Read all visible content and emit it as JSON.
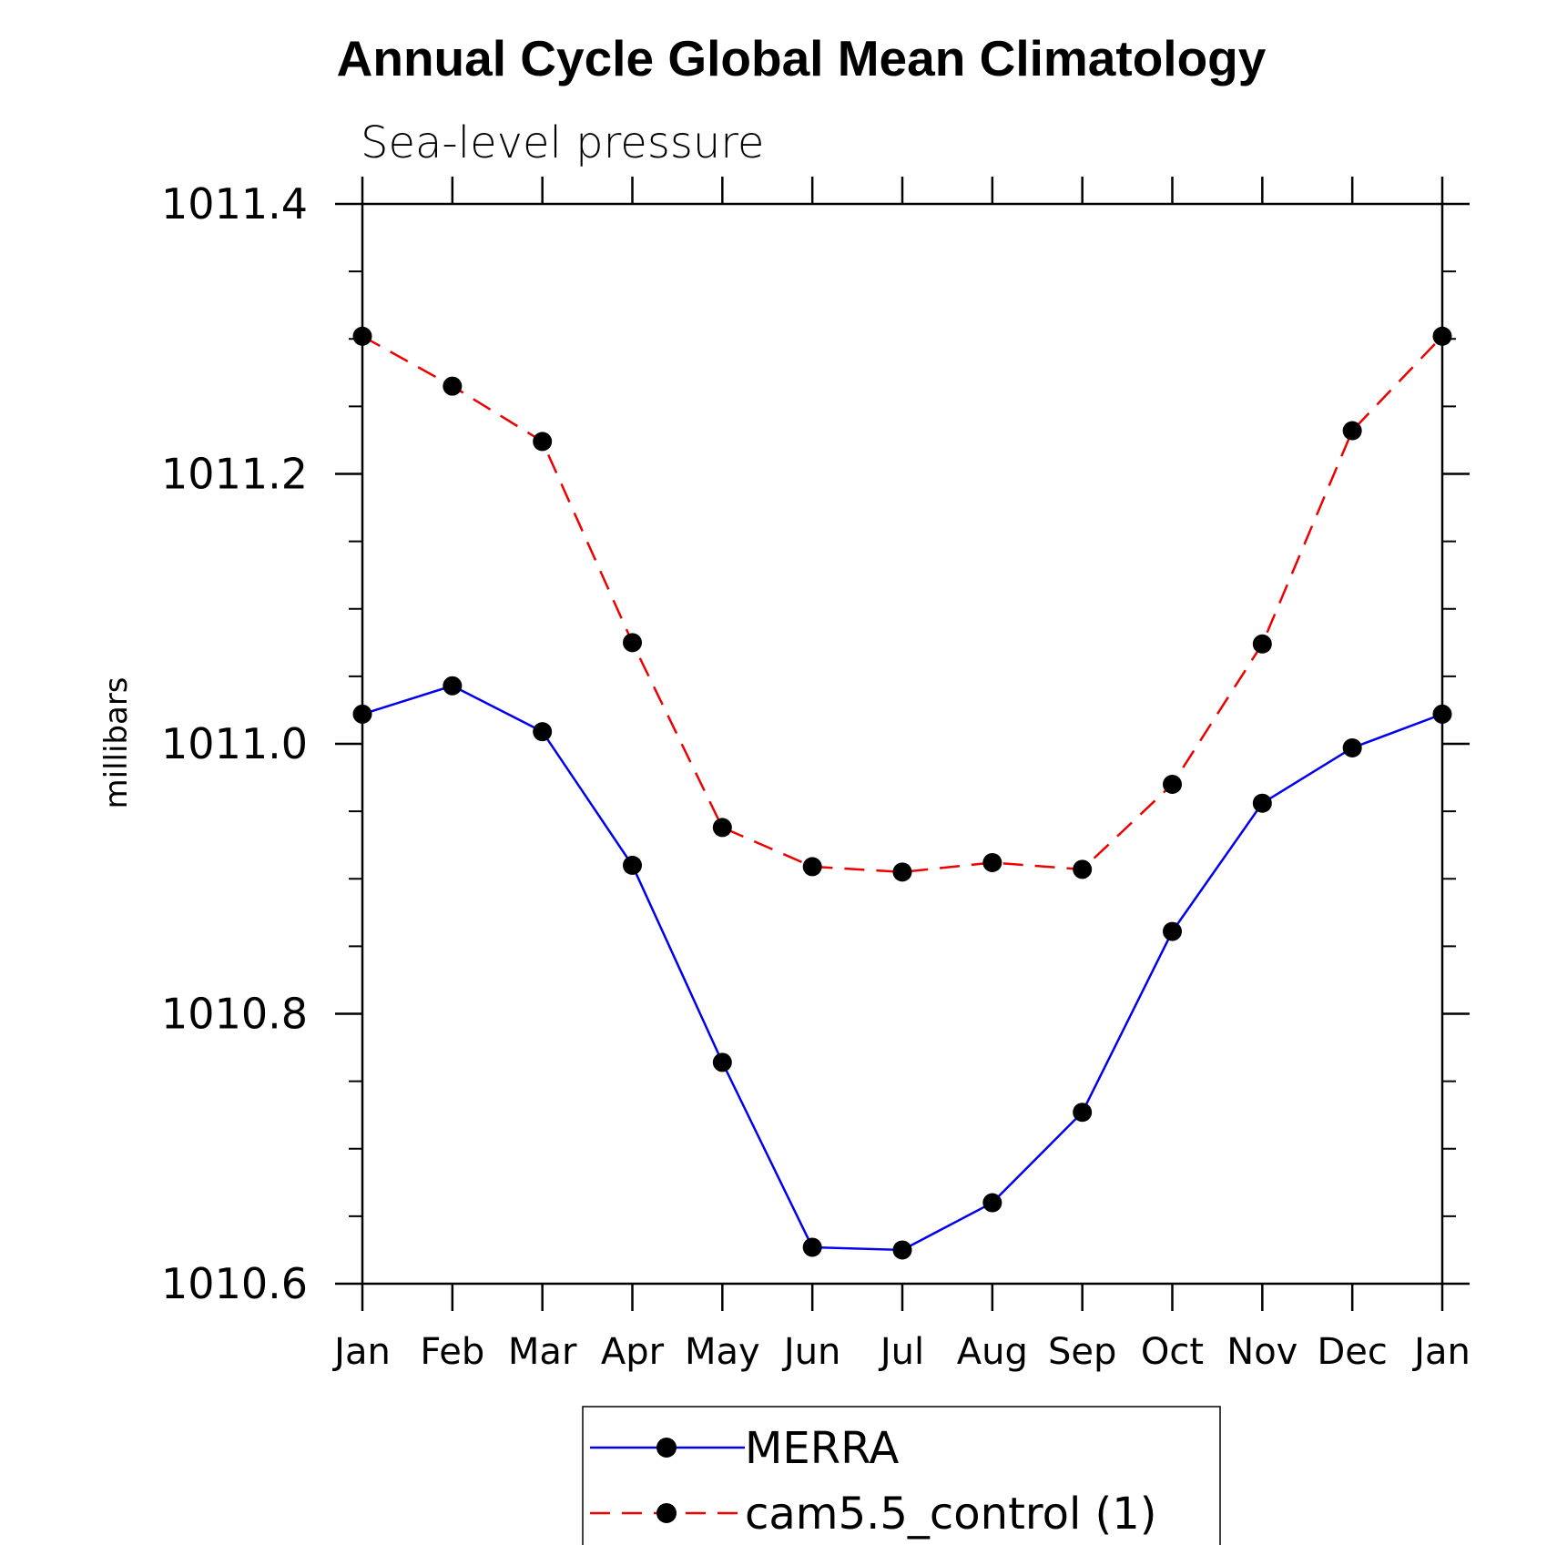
{
  "colors": {
    "merra": "#0000ee",
    "cam": "#ee0000",
    "marker": "#000000",
    "axis": "#000000"
  },
  "chart_data": {
    "type": "line",
    "title": "Annual Cycle Global Mean Climatology",
    "subtitle": "Sea-level pressure",
    "ylabel": "millibars",
    "xlabel": "",
    "ylim": [
      1010.6,
      1011.4
    ],
    "y_major_ticks": [
      1010.6,
      1010.8,
      1011.0,
      1011.2,
      1011.4
    ],
    "y_tick_labels": [
      "1010.6",
      "1010.8",
      "1011.0",
      "1011.2",
      "1011.4"
    ],
    "y_minor_step": 0.05,
    "categories": [
      "Jan",
      "Feb",
      "Mar",
      "Apr",
      "May",
      "Jun",
      "Jul",
      "Aug",
      "Sep",
      "Oct",
      "Nov",
      "Dec",
      "Jan"
    ],
    "series": [
      {
        "name": "MERRA",
        "style": "solid",
        "color": "#0000ee",
        "marker": "circle",
        "values": [
          1011.022,
          1011.043,
          1011.009,
          1010.91,
          1010.764,
          1010.627,
          1010.625,
          1010.66,
          1010.727,
          1010.861,
          1010.956,
          1010.997,
          1011.022
        ]
      },
      {
        "name": "cam5.5_control (1)",
        "style": "dashed",
        "color": "#ee0000",
        "marker": "circle",
        "values": [
          1011.302,
          1011.265,
          1011.224,
          1011.075,
          1010.938,
          1010.909,
          1010.905,
          1010.912,
          1010.907,
          1010.97,
          1011.074,
          1011.232,
          1011.302
        ]
      }
    ],
    "legend": {
      "position": "bottom-center",
      "entries": [
        "MERRA",
        "cam5.5_control (1)"
      ]
    }
  }
}
